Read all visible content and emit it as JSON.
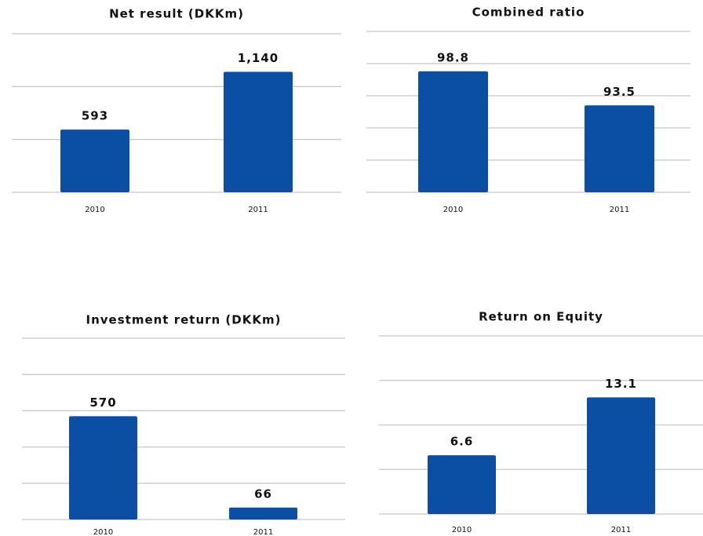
{
  "chart_data": [
    {
      "type": "bar",
      "title": "Net result (DKKm)",
      "categories": [
        "2010",
        "2011"
      ],
      "values": [
        593,
        1140
      ],
      "value_labels": [
        "593",
        "1,140"
      ],
      "color": "#0a4fa3",
      "ylim": [
        0,
        1500
      ],
      "yticks": [
        0,
        500,
        1000,
        1500
      ],
      "grid": true
    },
    {
      "type": "bar",
      "title": "Combined ratio",
      "categories": [
        "2010",
        "2011"
      ],
      "values": [
        98.8,
        93.5
      ],
      "color": "#0a4fa3",
      "ylim": [
        80,
        105
      ],
      "yticks": [
        80,
        85,
        90,
        95,
        100,
        105
      ],
      "grid": true
    },
    {
      "type": "bar",
      "title": "Investment return (DKKm)",
      "categories": [
        "2010",
        "2011"
      ],
      "values": [
        570,
        66
      ],
      "color": "#0a4fa3",
      "ylim": [
        0,
        1000
      ],
      "yticks": [
        0,
        200,
        400,
        600,
        800,
        1000
      ],
      "grid": true
    },
    {
      "type": "bar",
      "title": "Return on Equity",
      "categories": [
        "2010",
        "2011"
      ],
      "values": [
        6.6,
        13.1
      ],
      "color": "#0a4fa3",
      "ylim": [
        0,
        20
      ],
      "yticks": [
        0,
        5,
        10,
        15,
        20
      ],
      "grid": true
    }
  ]
}
